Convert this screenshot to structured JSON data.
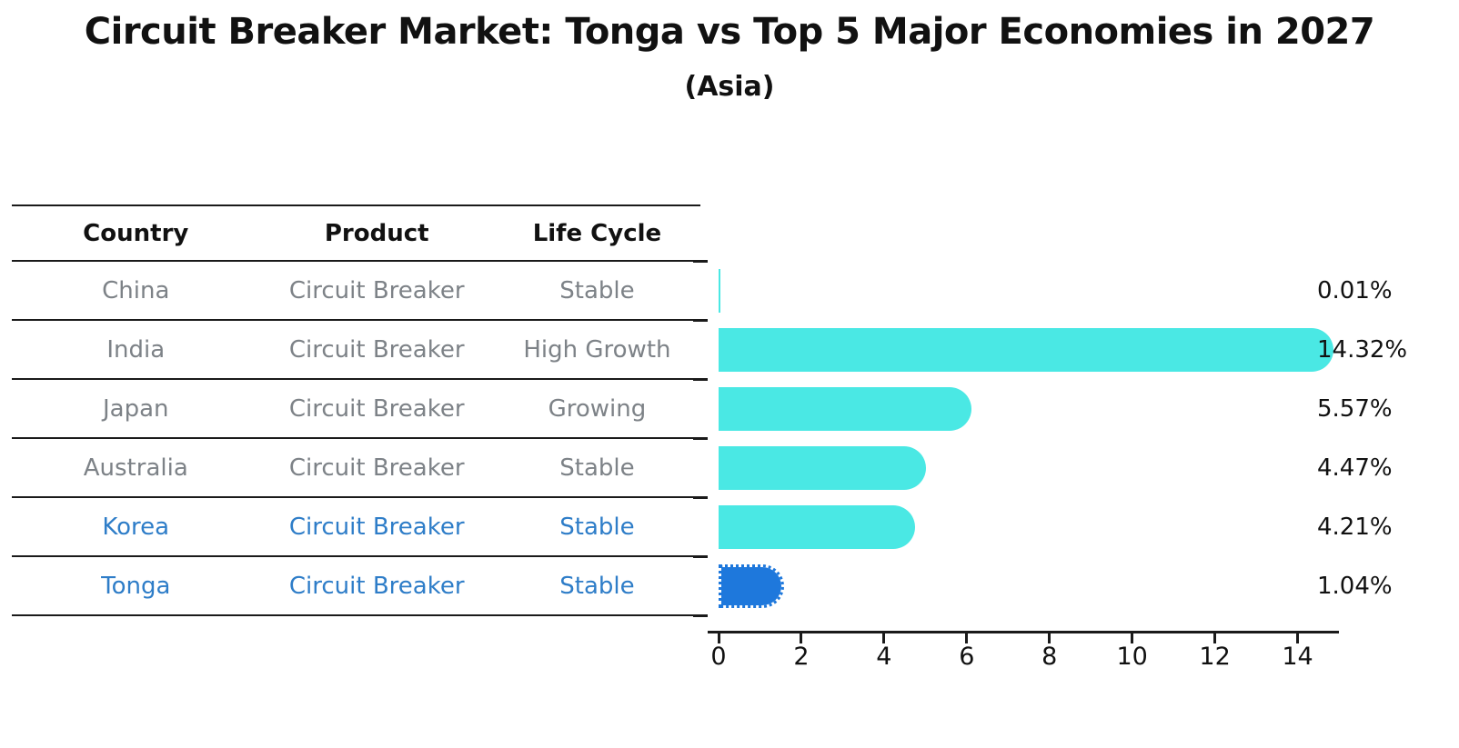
{
  "title": "Circuit Breaker Market: Tonga vs Top 5 Major Economies in 2027",
  "subtitle": "(Asia)",
  "table": {
    "headers": [
      "Country",
      "Product",
      "Life Cycle"
    ],
    "rows": [
      {
        "country": "China",
        "product": "Circuit Breaker",
        "life_cycle": "Stable",
        "highlight": false
      },
      {
        "country": "India",
        "product": "Circuit Breaker",
        "life_cycle": "High Growth",
        "highlight": false
      },
      {
        "country": "Japan",
        "product": "Circuit Breaker",
        "life_cycle": "Growing",
        "highlight": false
      },
      {
        "country": "Australia",
        "product": "Circuit Breaker",
        "life_cycle": "Stable",
        "highlight": false
      },
      {
        "country": "Korea",
        "product": "Circuit Breaker",
        "life_cycle": "Stable",
        "highlight": true
      }
    ],
    "highlight_row": {
      "country": "Tonga",
      "product": "Circuit Breaker",
      "life_cycle": "Stable"
    }
  },
  "chart_data": {
    "type": "bar",
    "orientation": "horizontal",
    "title": "Circuit Breaker Market: Tonga vs Top 5 Major Economies in 2027",
    "subtitle": "(Asia)",
    "categories": [
      "China",
      "India",
      "Japan",
      "Australia",
      "Korea",
      "Tonga"
    ],
    "values": [
      0.01,
      14.32,
      5.57,
      4.47,
      4.21,
      1.04
    ],
    "value_labels": [
      "0.01%",
      "14.32%",
      "5.57%",
      "4.47%",
      "4.21%",
      "1.04%"
    ],
    "xlim": [
      0,
      15
    ],
    "xticks": [
      0,
      2,
      4,
      6,
      8,
      10,
      12,
      14
    ],
    "grid": false,
    "legend": false,
    "highlight_index": 5,
    "bar_color": "#4AE8E4",
    "highlight_bar_color": "#1E78DC",
    "highlight_text_color": "#2e7dc8",
    "text_color": "#7d8287",
    "axis_color": "#1a1a1a"
  }
}
